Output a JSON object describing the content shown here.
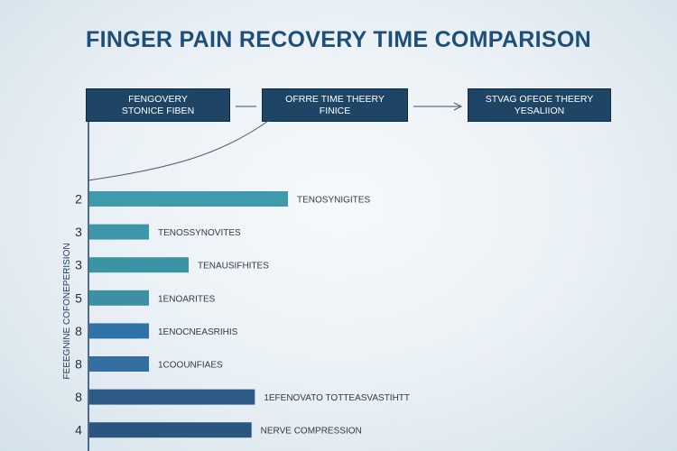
{
  "chart_data": {
    "type": "bar",
    "orientation": "horizontal",
    "title": "FINGER PAIN RECOVERY TIME COMPARISON",
    "ylabel": "FEEEGNINE COFONEPERISION",
    "xlim": [
      0,
      12
    ],
    "categories": [
      "2",
      "3",
      "3",
      "5",
      "8",
      "8",
      "8",
      "4"
    ],
    "values": [
      6,
      1.8,
      3,
      1.8,
      1.8,
      1.8,
      5,
      4.9
    ],
    "bar_labels": [
      "TENOSYNIGITES",
      "TENOSSYNOVITES",
      "TENAUSIFHITES",
      "1ENOARITES",
      "1ENOCNEASRIHIS",
      "1COOUNFIAES",
      "1EFENOVATO TOTTEASVASTIHTT",
      "NERVE COMPRESSION"
    ],
    "series_colors": [
      "#3f9bab",
      "#3e97a8",
      "#3a94a5",
      "#3c8fa4",
      "#2f72a8",
      "#356fa2",
      "#2c5a89",
      "#2a5580"
    ]
  },
  "flow": [
    {
      "line1": "FENGOVERY",
      "line2": "STONICE FIBEN"
    },
    {
      "line1": "OFRRE TIME THEERY",
      "line2": "FINICE"
    },
    {
      "line1": "STVAG OFEOE THEERY",
      "line2": "YESALIION"
    }
  ]
}
